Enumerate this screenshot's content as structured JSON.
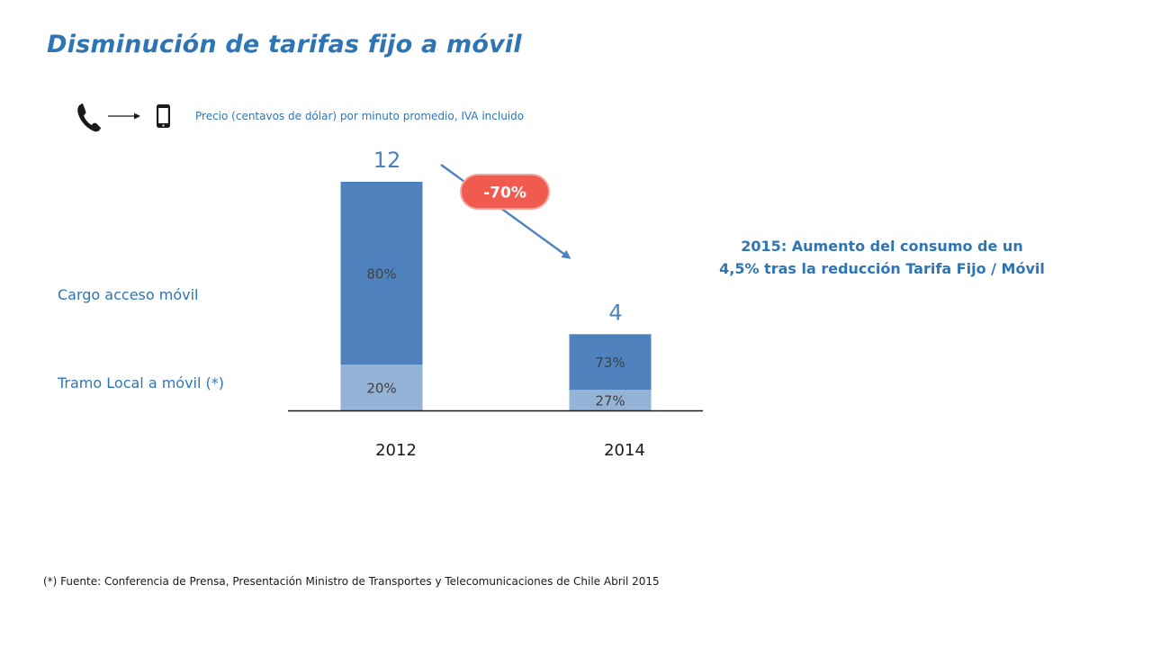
{
  "title": "Disminución de tarifas fijo a móvil",
  "subtitle": "Precio (centavos de dólar) por minuto promedio, IVA incluido",
  "icons": {
    "from": "landline-phone-icon",
    "arrow": "arrow-right-icon",
    "to": "mobile-phone-icon"
  },
  "row_labels": {
    "cargo": "Cargo acceso móvil",
    "tramo": "Tramo Local a móvil (*)"
  },
  "annotation": {
    "line1": "2015: Aumento del consumo de un",
    "line2": "4,5% tras la reducción Tarifa Fijo  / Móvil"
  },
  "footnote": "(*) Fuente: Conferencia de Prensa, Presentación Ministro de Transportes y Telecomunicaciones de Chile Abril 2015",
  "colors": {
    "accent": "#2E75B6",
    "bar_top": "#4F81BD",
    "bar_bottom": "#95B3D7",
    "badge": "#F05A4F"
  },
  "chart_data": {
    "type": "bar",
    "stacked": true,
    "categories": [
      "2012",
      "2014"
    ],
    "totals": [
      12,
      4
    ],
    "total_labels": [
      "12",
      "4"
    ],
    "series": [
      {
        "name": "Tramo Local a móvil (*)",
        "shares": [
          20,
          27
        ],
        "labels": [
          "20%",
          "27%"
        ],
        "color": "#95B3D7"
      },
      {
        "name": "Cargo acceso móvil",
        "shares": [
          80,
          73
        ],
        "labels": [
          "80%",
          "73%"
        ],
        "color": "#4F81BD"
      }
    ],
    "change_label": "-70%",
    "ylim": [
      0,
      12
    ],
    "grid": false
  }
}
